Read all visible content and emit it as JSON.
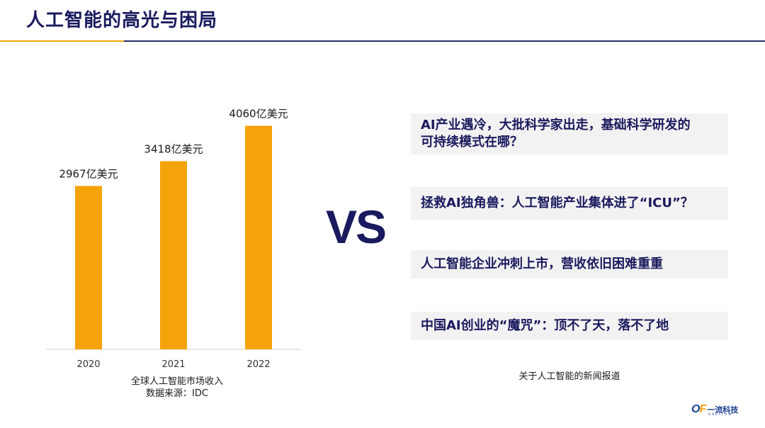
{
  "header": {
    "title": "人工智能的高光与困局"
  },
  "chart_data": {
    "type": "bar",
    "categories": [
      "2020",
      "2021",
      "2022"
    ],
    "values": [
      2967,
      3418,
      4060
    ],
    "data_labels": [
      "2967亿美元",
      "3418亿美元",
      "4060亿美元"
    ],
    "unit": "亿美元",
    "ylim": [
      0,
      4800
    ],
    "grid": false,
    "bar_color": "#f5a30a",
    "caption": "全球人工智能市场收入",
    "source": "数据来源：IDC"
  },
  "vs_label": "VS",
  "news": {
    "items": [
      {
        "line1": "AI产业遇冷，大批科学家出走，基础科学研发的",
        "line2": "可持续模式在哪？"
      },
      {
        "line1": "拯救AI独角兽：人工智能产业集体进了“ICU”？"
      },
      {
        "line1": "人工智能企业冲刺上市，营收依旧困难重重"
      },
      {
        "line1": "中国AI创业的“魔咒”：顶不了天，落不了地"
      }
    ],
    "caption": "关于人工智能的新闻报道"
  },
  "logo": {
    "mark_o": "O",
    "mark_f": "F",
    "text": "一流科技",
    "sub": "ONEFLOW"
  },
  "colors": {
    "accent": "#f5a30a",
    "navy": "#1a1a5e"
  }
}
